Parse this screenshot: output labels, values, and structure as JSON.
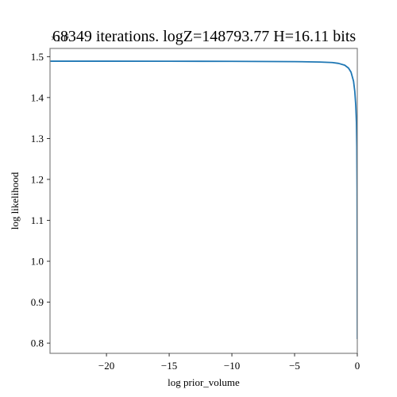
{
  "chart_data": {
    "type": "line",
    "title": "68349 iterations. logZ=148793.77 H=16.11 bits",
    "xlabel": "log prior_volume",
    "ylabel": "log likelihood",
    "y_offset_label": "×10⁵",
    "xlim": [
      -24.5,
      0
    ],
    "ylim": [
      0.775,
      1.52
    ],
    "y_scale": 100000,
    "x_ticks": [
      {
        "value": -20,
        "label": "−20"
      },
      {
        "value": -15,
        "label": "−15"
      },
      {
        "value": -10,
        "label": "−10"
      },
      {
        "value": -5,
        "label": "−5"
      },
      {
        "value": 0,
        "label": "0"
      }
    ],
    "y_ticks": [
      {
        "value": 0.8,
        "label": "0.8"
      },
      {
        "value": 0.9,
        "label": "0.9"
      },
      {
        "value": 1.0,
        "label": "1.0"
      },
      {
        "value": 1.1,
        "label": "1.1"
      },
      {
        "value": 1.2,
        "label": "1.2"
      },
      {
        "value": 1.3,
        "label": "1.3"
      },
      {
        "value": 1.4,
        "label": "1.4"
      },
      {
        "value": 1.5,
        "label": "1.5"
      }
    ],
    "grid": false,
    "series": [
      {
        "color": "#1f77b4",
        "x": [
          -24.5,
          -20,
          -15,
          -10,
          -5,
          -3,
          -2,
          -1.5,
          -1,
          -0.7,
          -0.5,
          -0.3,
          -0.2,
          -0.12,
          -0.07,
          -0.04,
          -0.02,
          -0.01,
          0
        ],
        "y": [
          1.4888,
          1.4888,
          1.4887,
          1.4885,
          1.4878,
          1.4868,
          1.4855,
          1.4835,
          1.479,
          1.472,
          1.462,
          1.44,
          1.415,
          1.38,
          1.34,
          1.28,
          1.18,
          1.02,
          0.81
        ]
      }
    ]
  }
}
